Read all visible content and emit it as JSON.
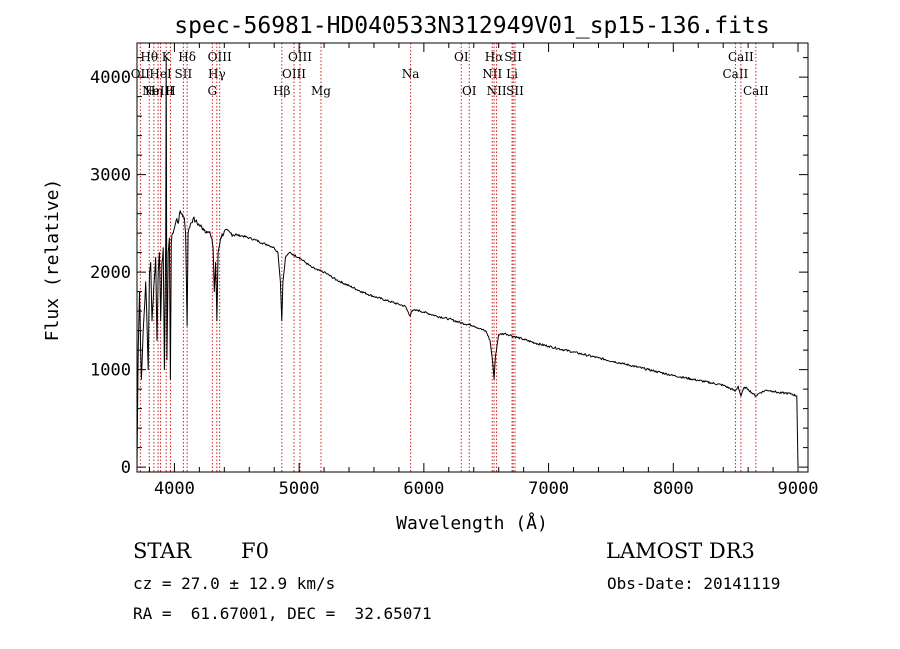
{
  "chart_data": {
    "type": "line",
    "title": "spec-56981-HD040533N312949V01_sp15-136.fits",
    "xlabel": "Wavelength (Å)",
    "ylabel": "Flux (relative)",
    "xlim": [
      3700,
      9080
    ],
    "ylim": [
      -50,
      4350
    ],
    "xticks": [
      4000,
      5000,
      6000,
      7000,
      8000,
      9000
    ],
    "yticks": [
      0,
      1000,
      2000,
      3000,
      4000
    ],
    "grid": false,
    "series": [
      {
        "name": "flux",
        "x": [
          3700,
          3710,
          3720,
          3735,
          3750,
          3770,
          3790,
          3800,
          3810,
          3820,
          3835,
          3850,
          3860,
          3870,
          3880,
          3890,
          3900,
          3910,
          3920,
          3930,
          3934,
          3940,
          3950,
          3960,
          3968,
          3975,
          3985,
          4000,
          4020,
          4030,
          4040,
          4060,
          4080,
          4090,
          4102,
          4110,
          4130,
          4150,
          4170,
          4200,
          4230,
          4260,
          4290,
          4300,
          4310,
          4320,
          4330,
          4341,
          4350,
          4370,
          4400,
          4450,
          4500,
          4550,
          4600,
          4650,
          4700,
          4750,
          4800,
          4830,
          4850,
          4861,
          4870,
          4890,
          4920,
          4950,
          5000,
          5050,
          5100,
          5150,
          5200,
          5300,
          5400,
          5500,
          5600,
          5700,
          5800,
          5850,
          5890,
          5900,
          5950,
          6000,
          6100,
          6200,
          6300,
          6400,
          6450,
          6500,
          6530,
          6550,
          6563,
          6575,
          6600,
          6650,
          6700,
          6800,
          6900,
          7000,
          7200,
          7400,
          7600,
          7800,
          8000,
          8200,
          8400,
          8498,
          8520,
          8542,
          8570,
          8600,
          8640,
          8662,
          8690,
          8750,
          8800,
          8850,
          8900,
          8950,
          8990,
          9000
        ],
        "y": [
          0,
          1200,
          1800,
          900,
          1400,
          1900,
          1000,
          2000,
          2100,
          1500,
          1850,
          2150,
          1300,
          2000,
          2200,
          1500,
          2100,
          2250,
          1000,
          2300,
          4200,
          1100,
          2200,
          2350,
          900,
          2300,
          2400,
          2450,
          2550,
          2500,
          2600,
          2600,
          2550,
          2400,
          1450,
          2400,
          2500,
          2550,
          2520,
          2480,
          2450,
          2420,
          2380,
          2350,
          2250,
          1800,
          2100,
          1500,
          2200,
          2350,
          2420,
          2400,
          2380,
          2370,
          2350,
          2330,
          2300,
          2280,
          2250,
          2200,
          1900,
          1500,
          1900,
          2150,
          2200,
          2180,
          2150,
          2100,
          2050,
          2020,
          2000,
          1920,
          1860,
          1800,
          1750,
          1710,
          1670,
          1650,
          1550,
          1600,
          1610,
          1590,
          1550,
          1520,
          1480,
          1450,
          1420,
          1390,
          1300,
          1100,
          900,
          1150,
          1360,
          1370,
          1350,
          1310,
          1270,
          1240,
          1180,
          1120,
          1060,
          1000,
          940,
          890,
          840,
          780,
          830,
          730,
          820,
          800,
          750,
          730,
          760,
          790,
          780,
          760,
          760,
          750,
          730,
          0
        ]
      }
    ],
    "lines": [
      {
        "w": 3727,
        "label": "OII",
        "row": 1
      },
      {
        "w": 3798,
        "label": "Hθ",
        "row": 0
      },
      {
        "w": 3835,
        "label": "Hη",
        "row": 2
      },
      {
        "w": 3869,
        "label": "NeIII",
        "row": 2
      },
      {
        "w": 3889,
        "label": "HeI",
        "row": 1
      },
      {
        "w": 3934,
        "label": "K",
        "row": 0
      },
      {
        "w": 3968,
        "label": "H",
        "row": 2
      },
      {
        "w": 4072,
        "label": "SII",
        "row": 1
      },
      {
        "w": 4102,
        "label": "Hδ",
        "row": 0
      },
      {
        "w": 4304,
        "label": "G",
        "row": 2
      },
      {
        "w": 4340,
        "label": "Hγ",
        "row": 1
      },
      {
        "w": 4363,
        "label": "OIII",
        "row": 0
      },
      {
        "w": 4861,
        "label": "Hβ",
        "row": 2
      },
      {
        "w": 4959,
        "label": "OIII",
        "row": 1
      },
      {
        "w": 5007,
        "label": "OIII",
        "row": 0
      },
      {
        "w": 5175,
        "label": "Mg",
        "row": 2
      },
      {
        "w": 5894,
        "label": "Na",
        "row": 1
      },
      {
        "w": 6300,
        "label": "OI",
        "row": 0
      },
      {
        "w": 6364,
        "label": "OI",
        "row": 2
      },
      {
        "w": 6548,
        "label": "NII",
        "row": 1
      },
      {
        "w": 6563,
        "label": "Hα",
        "row": 0
      },
      {
        "w": 6583,
        "label": "NII",
        "row": 2
      },
      {
        "w": 6707,
        "label": "Li",
        "row": 1
      },
      {
        "w": 6716,
        "label": "SII",
        "row": 0
      },
      {
        "w": 6731,
        "label": "SII",
        "row": 2
      },
      {
        "w": 8498,
        "label": "CaII",
        "row": 1
      },
      {
        "w": 8542,
        "label": "CaII",
        "row": 0
      },
      {
        "w": 8662,
        "label": "CaII",
        "row": 2
      }
    ]
  },
  "info": {
    "object_class": "STAR",
    "subclass": "F0",
    "survey": "LAMOST DR3",
    "redshift_line": "cz = 27.0 ± 12.9 km/s",
    "obs_date_line": "Obs-Date: 20141119",
    "coords_line": "RA =  61.67001, DEC =  32.65071"
  }
}
